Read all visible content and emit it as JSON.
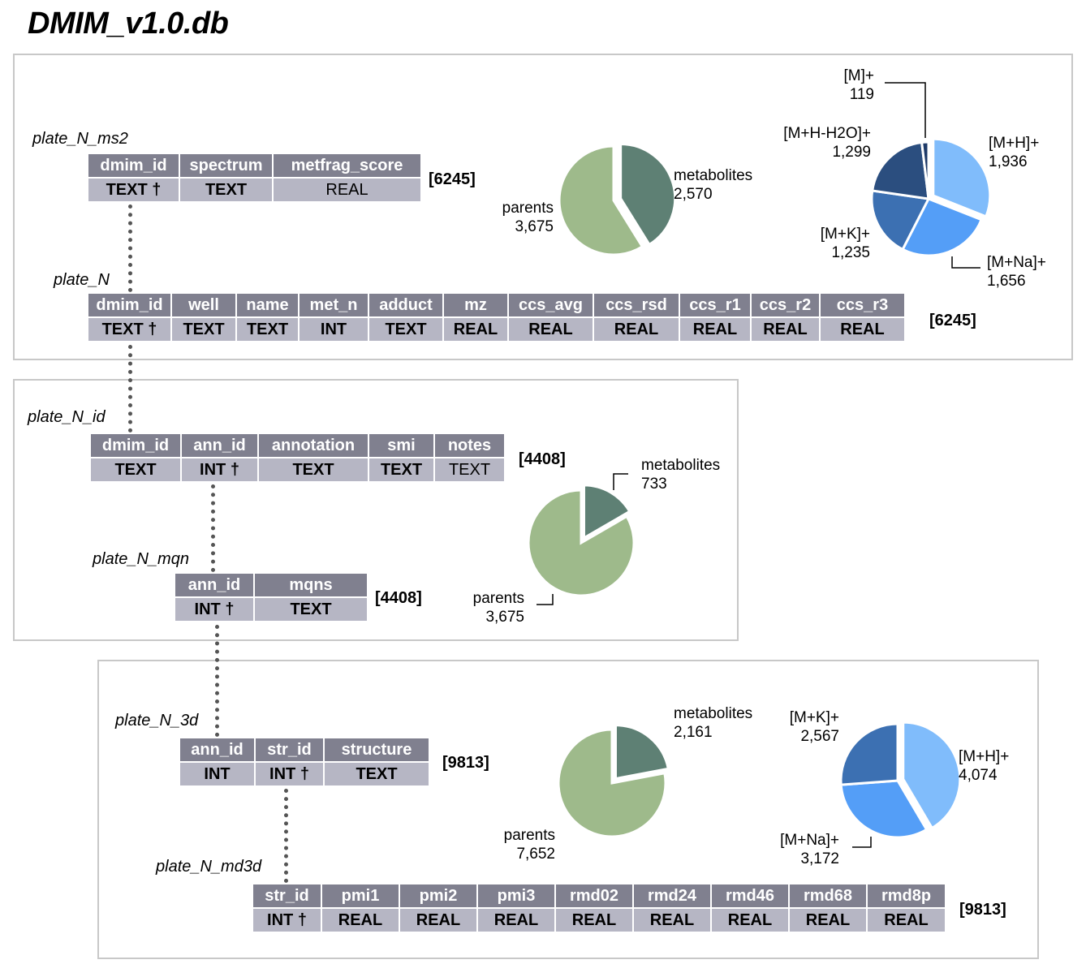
{
  "title": "DMIM_v1.0.db",
  "colors": {
    "header_bg": "#80808f",
    "type_bg": "#b6b6c4",
    "parents": "#9eba8b",
    "metabolites": "#5e8074",
    "adduct_MH": "#80bcfb",
    "adduct_MNa": "#549ef7",
    "adduct_MK": "#3c70b2",
    "adduct_MHH2O": "#2b4e7f",
    "adduct_M": "#1e3a68"
  },
  "tables": {
    "ms2": {
      "name": "plate_N_ms2",
      "count": "[6245]",
      "cols": [
        {
          "h": "dmim_id",
          "t": "TEXT †"
        },
        {
          "h": "spectrum",
          "t": "TEXT"
        },
        {
          "h": "metfrag_score",
          "t": "REAL"
        }
      ]
    },
    "plate": {
      "name": "plate_N",
      "count": "[6245]",
      "cols": [
        {
          "h": "dmim_id",
          "t": "TEXT †"
        },
        {
          "h": "well",
          "t": "TEXT"
        },
        {
          "h": "name",
          "t": "TEXT"
        },
        {
          "h": "met_n",
          "t": "INT"
        },
        {
          "h": "adduct",
          "t": "TEXT"
        },
        {
          "h": "mz",
          "t": "REAL"
        },
        {
          "h": "ccs_avg",
          "t": "REAL"
        },
        {
          "h": "ccs_rsd",
          "t": "REAL"
        },
        {
          "h": "ccs_r1",
          "t": "REAL"
        },
        {
          "h": "ccs_r2",
          "t": "REAL"
        },
        {
          "h": "ccs_r3",
          "t": "REAL"
        }
      ]
    },
    "id": {
      "name": "plate_N_id",
      "count": "[4408]",
      "cols": [
        {
          "h": "dmim_id",
          "t": "TEXT"
        },
        {
          "h": "ann_id",
          "t": "INT †"
        },
        {
          "h": "annotation",
          "t": "TEXT"
        },
        {
          "h": "smi",
          "t": "TEXT"
        },
        {
          "h": "notes",
          "t": "TEXT"
        }
      ]
    },
    "mqn": {
      "name": "plate_N_mqn",
      "count": "[4408]",
      "cols": [
        {
          "h": "ann_id",
          "t": "INT †"
        },
        {
          "h": "mqns",
          "t": "TEXT"
        }
      ]
    },
    "d3": {
      "name": "plate_N_3d",
      "count": "[9813]",
      "cols": [
        {
          "h": "ann_id",
          "t": "INT"
        },
        {
          "h": "str_id",
          "t": "INT †"
        },
        {
          "h": "structure",
          "t": "TEXT"
        }
      ]
    },
    "md3d": {
      "name": "plate_N_md3d",
      "count": "[9813]",
      "cols": [
        {
          "h": "str_id",
          "t": "INT †"
        },
        {
          "h": "pmi1",
          "t": "REAL"
        },
        {
          "h": "pmi2",
          "t": "REAL"
        },
        {
          "h": "pmi3",
          "t": "REAL"
        },
        {
          "h": "rmd02",
          "t": "REAL"
        },
        {
          "h": "rmd24",
          "t": "REAL"
        },
        {
          "h": "rmd46",
          "t": "REAL"
        },
        {
          "h": "rmd68",
          "t": "REAL"
        },
        {
          "h": "rmd8p",
          "t": "REAL"
        }
      ]
    }
  },
  "chart_data": [
    {
      "type": "pie",
      "slices": [
        {
          "label": "metabolites",
          "value": 2570,
          "display": "2,570",
          "color": "#5e8074",
          "exploded": true
        },
        {
          "label": "parents",
          "value": 3675,
          "display": "3,675",
          "color": "#9eba8b"
        }
      ]
    },
    {
      "type": "pie",
      "slices": [
        {
          "label": "[M+H]+",
          "value": 1936,
          "display": "1,936",
          "color": "#80bcfb",
          "exploded": true
        },
        {
          "label": "[M+Na]+",
          "value": 1656,
          "display": "1,656",
          "color": "#549ef7"
        },
        {
          "label": "[M+K]+",
          "value": 1235,
          "display": "1,235",
          "color": "#3c70b2"
        },
        {
          "label": "[M+H-H2O]+",
          "value": 1299,
          "display": "1,299",
          "color": "#2b4e7f"
        },
        {
          "label": "[M]+",
          "value": 119,
          "display": "119",
          "color": "#1e3a68"
        }
      ]
    },
    {
      "type": "pie",
      "slices": [
        {
          "label": "metabolites",
          "value": 733,
          "display": "733",
          "color": "#5e8074",
          "exploded": true
        },
        {
          "label": "parents",
          "value": 3675,
          "display": "3,675",
          "color": "#9eba8b"
        }
      ]
    },
    {
      "type": "pie",
      "slices": [
        {
          "label": "metabolites",
          "value": 2161,
          "display": "2,161",
          "color": "#5e8074",
          "exploded": true
        },
        {
          "label": "parents",
          "value": 7652,
          "display": "7,652",
          "color": "#9eba8b"
        }
      ]
    },
    {
      "type": "pie",
      "slices": [
        {
          "label": "[M+H]+",
          "value": 4074,
          "display": "4,074",
          "color": "#80bcfb",
          "exploded": true
        },
        {
          "label": "[M+Na]+",
          "value": 3172,
          "display": "3,172",
          "color": "#549ef7"
        },
        {
          "label": "[M+K]+",
          "value": 2567,
          "display": "2,567",
          "color": "#3c70b2"
        }
      ]
    }
  ]
}
